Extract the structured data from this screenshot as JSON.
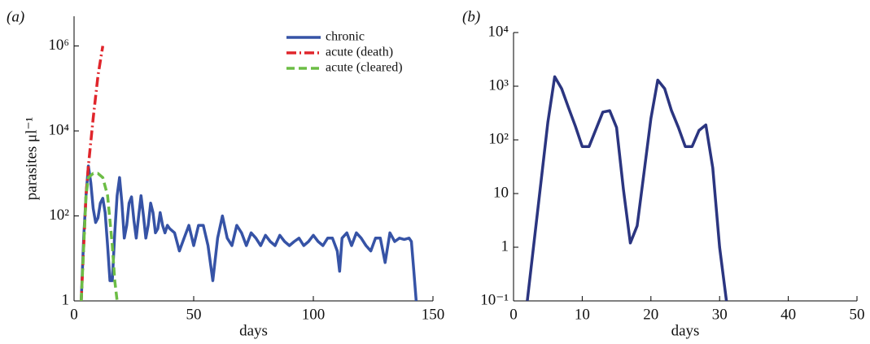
{
  "chart_data": [
    {
      "type": "line",
      "title": "(a)",
      "xlabel": "days",
      "ylabel": "parasites μl⁻¹",
      "yscale": "log",
      "xlim": [
        0,
        150
      ],
      "xticks": [
        0,
        50,
        100,
        150
      ],
      "ylim": [
        1,
        5000000
      ],
      "yticks": [
        1,
        {
          "value": 100,
          "label": "10²"
        },
        {
          "value": 10000,
          "label": "10⁴"
        },
        {
          "value": 1000000,
          "label": "10⁶"
        }
      ],
      "legend": "upper right",
      "series": [
        {
          "name": "chronic",
          "color": "#3653a6",
          "linestyle": "solid",
          "x": [
            3,
            4,
            5,
            6,
            7,
            8,
            9,
            10,
            11,
            12,
            13,
            14,
            15,
            16,
            17,
            18,
            19,
            20,
            21,
            22,
            23,
            24,
            25,
            26,
            27,
            28,
            29,
            30,
            31,
            32,
            33,
            34,
            35,
            36,
            37,
            38,
            39,
            40,
            42,
            44,
            46,
            48,
            50,
            52,
            54,
            56,
            58,
            60,
            62,
            64,
            66,
            68,
            70,
            72,
            74,
            76,
            78,
            80,
            82,
            84,
            86,
            88,
            90,
            92,
            94,
            96,
            98,
            100,
            102,
            104,
            106,
            108,
            110,
            111,
            112,
            114,
            116,
            118,
            120,
            122,
            124,
            126,
            128,
            130,
            132,
            134,
            136,
            138,
            140,
            141,
            142,
            143
          ],
          "values": [
            1,
            30,
            300,
            1500,
            600,
            150,
            70,
            90,
            200,
            260,
            120,
            20,
            3,
            3,
            40,
            300,
            800,
            200,
            30,
            60,
            200,
            280,
            80,
            30,
            100,
            300,
            100,
            30,
            60,
            200,
            120,
            40,
            50,
            120,
            60,
            40,
            60,
            50,
            40,
            15,
            30,
            60,
            20,
            60,
            60,
            20,
            3,
            30,
            100,
            30,
            20,
            60,
            40,
            20,
            40,
            30,
            20,
            35,
            25,
            20,
            35,
            25,
            20,
            25,
            30,
            20,
            25,
            35,
            25,
            20,
            30,
            30,
            15,
            5,
            30,
            40,
            20,
            40,
            30,
            20,
            15,
            30,
            30,
            8,
            40,
            25,
            30,
            28,
            30,
            25,
            5,
            1
          ]
        },
        {
          "name": "acute (death)",
          "color": "#e0252b",
          "linestyle": "dashdot",
          "x": [
            3,
            5,
            6,
            8,
            10,
            12
          ],
          "values": [
            1,
            300,
            1500,
            20000,
            200000,
            1000000
          ]
        },
        {
          "name": "acute (cleared)",
          "color": "#6cbd45",
          "linestyle": "dashed",
          "x": [
            3,
            5,
            6,
            8,
            10,
            12,
            14,
            16,
            17,
            18
          ],
          "values": [
            1,
            300,
            800,
            1000,
            1000,
            800,
            300,
            20,
            3,
            1
          ]
        }
      ]
    },
    {
      "type": "line",
      "title": "(b)",
      "xlabel": "days",
      "yscale": "log",
      "xlim": [
        0,
        50
      ],
      "xticks": [
        0,
        10,
        20,
        30,
        40,
        50
      ],
      "ylim": [
        0.1,
        10000
      ],
      "yticks": [
        {
          "value": 0.1,
          "label": "10⁻¹"
        },
        1,
        10,
        {
          "value": 100,
          "label": "10²"
        },
        {
          "value": 1000,
          "label": "10³"
        },
        {
          "value": 10000,
          "label": "10⁴"
        }
      ],
      "series": [
        {
          "color": "#2b3580",
          "linestyle": "solid",
          "x": [
            2,
            5,
            6,
            7,
            8,
            9,
            10,
            11,
            13,
            14,
            15,
            16,
            17,
            18,
            19,
            20,
            21,
            22,
            23,
            24,
            25,
            26,
            27,
            28,
            29,
            30,
            31
          ],
          "values": [
            0.1,
            215,
            1500,
            900,
            400,
            180,
            75,
            75,
            330,
            350,
            170,
            12,
            1.2,
            2.5,
            25,
            250,
            1300,
            900,
            350,
            170,
            75,
            75,
            150,
            190,
            30,
            1,
            0.1
          ]
        }
      ]
    }
  ]
}
